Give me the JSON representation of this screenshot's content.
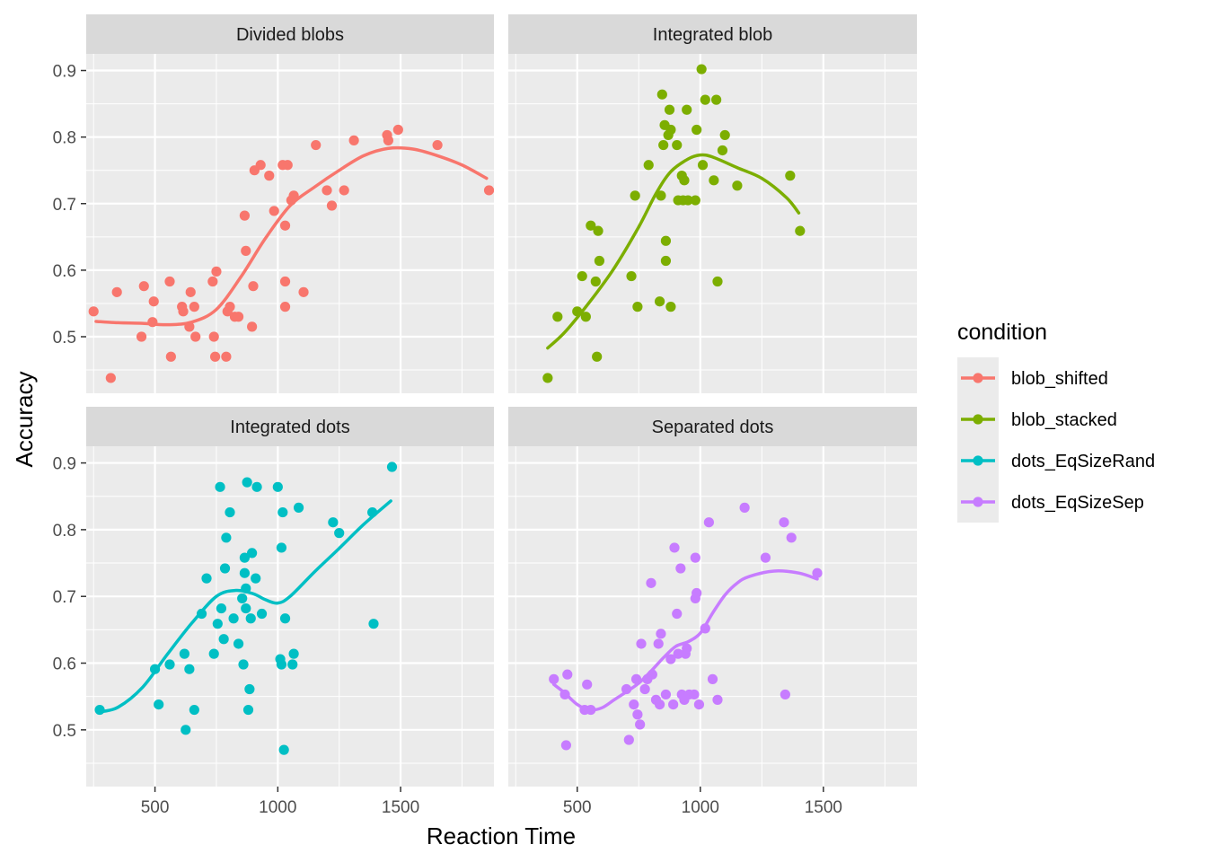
{
  "chart_data": {
    "type": "scatter",
    "xlabel": "Reaction Time",
    "ylabel": "Accuracy",
    "xlim": [
      220,
      1880
    ],
    "ylim": [
      0.415,
      0.925
    ],
    "x_ticks": [
      500,
      1000,
      1500
    ],
    "y_ticks": [
      0.5,
      0.6,
      0.7,
      0.8,
      0.9
    ],
    "grid": true,
    "legend": {
      "title": "condition",
      "placement": "right",
      "entries": [
        "blob_shifted",
        "blob_stacked",
        "dots_EqSizeRand",
        "dots_EqSizeSep"
      ]
    },
    "colors": {
      "blob_shifted": "#f8766d",
      "blob_stacked": "#7cae00",
      "dots_EqSizeRand": "#00bfc4",
      "dots_EqSizeSep": "#c77cff",
      "panel_bg": "#ebebeb",
      "strip_bg": "#d9d9d9"
    },
    "panels": [
      {
        "title": "Divided blobs",
        "condition": "blob_shifted",
        "points": [
          [
            250,
            0.538
          ],
          [
            320,
            0.438
          ],
          [
            345,
            0.567
          ],
          [
            445,
            0.5
          ],
          [
            455,
            0.576
          ],
          [
            490,
            0.522
          ],
          [
            495,
            0.553
          ],
          [
            560,
            0.583
          ],
          [
            565,
            0.47
          ],
          [
            610,
            0.545
          ],
          [
            615,
            0.538
          ],
          [
            640,
            0.515
          ],
          [
            645,
            0.567
          ],
          [
            660,
            0.545
          ],
          [
            665,
            0.5
          ],
          [
            735,
            0.583
          ],
          [
            740,
            0.5
          ],
          [
            745,
            0.47
          ],
          [
            750,
            0.598
          ],
          [
            790,
            0.47
          ],
          [
            795,
            0.538
          ],
          [
            805,
            0.545
          ],
          [
            825,
            0.53
          ],
          [
            840,
            0.53
          ],
          [
            865,
            0.682
          ],
          [
            870,
            0.629
          ],
          [
            895,
            0.515
          ],
          [
            900,
            0.576
          ],
          [
            905,
            0.75
          ],
          [
            930,
            0.758
          ],
          [
            965,
            0.742
          ],
          [
            985,
            0.689
          ],
          [
            1020,
            0.758
          ],
          [
            1030,
            0.667
          ],
          [
            1030,
            0.583
          ],
          [
            1030,
            0.545
          ],
          [
            1040,
            0.758
          ],
          [
            1055,
            0.705
          ],
          [
            1065,
            0.712
          ],
          [
            1105,
            0.567
          ],
          [
            1155,
            0.788
          ],
          [
            1200,
            0.72
          ],
          [
            1220,
            0.697
          ],
          [
            1270,
            0.72
          ],
          [
            1310,
            0.795
          ],
          [
            1445,
            0.803
          ],
          [
            1450,
            0.795
          ],
          [
            1490,
            0.811
          ],
          [
            1650,
            0.788
          ],
          [
            1860,
            0.72
          ]
        ],
        "smooth": [
          [
            260,
            0.523
          ],
          [
            350,
            0.521
          ],
          [
            450,
            0.52
          ],
          [
            550,
            0.518
          ],
          [
            650,
            0.522
          ],
          [
            750,
            0.541
          ],
          [
            850,
            0.59
          ],
          [
            950,
            0.648
          ],
          [
            1050,
            0.697
          ],
          [
            1150,
            0.725
          ],
          [
            1250,
            0.75
          ],
          [
            1350,
            0.772
          ],
          [
            1450,
            0.783
          ],
          [
            1550,
            0.782
          ],
          [
            1650,
            0.772
          ],
          [
            1750,
            0.758
          ],
          [
            1850,
            0.738
          ]
        ]
      },
      {
        "title": "Integrated blob",
        "condition": "blob_stacked",
        "points": [
          [
            380,
            0.438
          ],
          [
            420,
            0.53
          ],
          [
            500,
            0.538
          ],
          [
            520,
            0.591
          ],
          [
            535,
            0.53
          ],
          [
            555,
            0.667
          ],
          [
            575,
            0.583
          ],
          [
            580,
            0.47
          ],
          [
            585,
            0.659
          ],
          [
            590,
            0.614
          ],
          [
            720,
            0.591
          ],
          [
            735,
            0.712
          ],
          [
            745,
            0.545
          ],
          [
            790,
            0.758
          ],
          [
            835,
            0.553
          ],
          [
            840,
            0.712
          ],
          [
            845,
            0.864
          ],
          [
            850,
            0.788
          ],
          [
            855,
            0.818
          ],
          [
            860,
            0.644
          ],
          [
            860,
            0.614
          ],
          [
            870,
            0.803
          ],
          [
            875,
            0.841
          ],
          [
            880,
            0.545
          ],
          [
            880,
            0.811
          ],
          [
            905,
            0.788
          ],
          [
            910,
            0.705
          ],
          [
            925,
            0.742
          ],
          [
            930,
            0.705
          ],
          [
            935,
            0.735
          ],
          [
            945,
            0.841
          ],
          [
            950,
            0.705
          ],
          [
            980,
            0.705
          ],
          [
            985,
            0.811
          ],
          [
            1005,
            0.902
          ],
          [
            1010,
            0.758
          ],
          [
            1020,
            0.856
          ],
          [
            1055,
            0.735
          ],
          [
            1065,
            0.856
          ],
          [
            1070,
            0.583
          ],
          [
            1090,
            0.78
          ],
          [
            1100,
            0.803
          ],
          [
            1150,
            0.727
          ],
          [
            1365,
            0.742
          ],
          [
            1405,
            0.659
          ]
        ],
        "smooth": [
          [
            380,
            0.483
          ],
          [
            450,
            0.507
          ],
          [
            550,
            0.552
          ],
          [
            650,
            0.603
          ],
          [
            750,
            0.665
          ],
          [
            820,
            0.715
          ],
          [
            880,
            0.748
          ],
          [
            950,
            0.767
          ],
          [
            1000,
            0.773
          ],
          [
            1050,
            0.77
          ],
          [
            1150,
            0.754
          ],
          [
            1250,
            0.738
          ],
          [
            1350,
            0.709
          ],
          [
            1400,
            0.686
          ]
        ]
      },
      {
        "title": "Integrated dots",
        "condition": "dots_EqSizeRand",
        "points": [
          [
            275,
            0.53
          ],
          [
            500,
            0.591
          ],
          [
            515,
            0.538
          ],
          [
            560,
            0.598
          ],
          [
            620,
            0.614
          ],
          [
            625,
            0.5
          ],
          [
            640,
            0.591
          ],
          [
            660,
            0.53
          ],
          [
            690,
            0.674
          ],
          [
            710,
            0.727
          ],
          [
            740,
            0.614
          ],
          [
            755,
            0.659
          ],
          [
            765,
            0.864
          ],
          [
            770,
            0.682
          ],
          [
            780,
            0.636
          ],
          [
            785,
            0.742
          ],
          [
            790,
            0.788
          ],
          [
            805,
            0.826
          ],
          [
            820,
            0.667
          ],
          [
            840,
            0.629
          ],
          [
            855,
            0.697
          ],
          [
            860,
            0.598
          ],
          [
            865,
            0.735
          ],
          [
            865,
            0.758
          ],
          [
            870,
            0.712
          ],
          [
            870,
            0.682
          ],
          [
            875,
            0.871
          ],
          [
            880,
            0.53
          ],
          [
            885,
            0.561
          ],
          [
            890,
            0.667
          ],
          [
            895,
            0.765
          ],
          [
            910,
            0.727
          ],
          [
            915,
            0.864
          ],
          [
            935,
            0.674
          ],
          [
            1000,
            0.864
          ],
          [
            1010,
            0.606
          ],
          [
            1015,
            0.598
          ],
          [
            1015,
            0.773
          ],
          [
            1020,
            0.826
          ],
          [
            1025,
            0.47
          ],
          [
            1030,
            0.667
          ],
          [
            1060,
            0.598
          ],
          [
            1065,
            0.614
          ],
          [
            1085,
            0.833
          ],
          [
            1225,
            0.811
          ],
          [
            1250,
            0.795
          ],
          [
            1385,
            0.826
          ],
          [
            1390,
            0.659
          ],
          [
            1465,
            0.894
          ]
        ],
        "smooth": [
          [
            275,
            0.527
          ],
          [
            350,
            0.534
          ],
          [
            450,
            0.564
          ],
          [
            550,
            0.613
          ],
          [
            650,
            0.66
          ],
          [
            750,
            0.7
          ],
          [
            830,
            0.709
          ],
          [
            900,
            0.704
          ],
          [
            950,
            0.695
          ],
          [
            1000,
            0.69
          ],
          [
            1050,
            0.7
          ],
          [
            1150,
            0.737
          ],
          [
            1250,
            0.772
          ],
          [
            1350,
            0.808
          ],
          [
            1460,
            0.843
          ]
        ]
      },
      {
        "title": "Separated dots",
        "condition": "dots_EqSizeSep",
        "points": [
          [
            405,
            0.576
          ],
          [
            450,
            0.553
          ],
          [
            455,
            0.477
          ],
          [
            460,
            0.583
          ],
          [
            530,
            0.53
          ],
          [
            540,
            0.568
          ],
          [
            555,
            0.53
          ],
          [
            700,
            0.561
          ],
          [
            710,
            0.485
          ],
          [
            730,
            0.538
          ],
          [
            740,
            0.576
          ],
          [
            745,
            0.523
          ],
          [
            755,
            0.508
          ],
          [
            760,
            0.629
          ],
          [
            775,
            0.561
          ],
          [
            785,
            0.576
          ],
          [
            800,
            0.72
          ],
          [
            805,
            0.583
          ],
          [
            820,
            0.545
          ],
          [
            830,
            0.629
          ],
          [
            835,
            0.538
          ],
          [
            840,
            0.644
          ],
          [
            860,
            0.553
          ],
          [
            880,
            0.606
          ],
          [
            890,
            0.538
          ],
          [
            895,
            0.773
          ],
          [
            905,
            0.674
          ],
          [
            910,
            0.614
          ],
          [
            920,
            0.742
          ],
          [
            925,
            0.553
          ],
          [
            935,
            0.545
          ],
          [
            940,
            0.614
          ],
          [
            945,
            0.622
          ],
          [
            955,
            0.553
          ],
          [
            975,
            0.553
          ],
          [
            980,
            0.758
          ],
          [
            980,
            0.697
          ],
          [
            985,
            0.705
          ],
          [
            995,
            0.538
          ],
          [
            1020,
            0.652
          ],
          [
            1035,
            0.811
          ],
          [
            1050,
            0.576
          ],
          [
            1070,
            0.545
          ],
          [
            1180,
            0.833
          ],
          [
            1265,
            0.758
          ],
          [
            1340,
            0.811
          ],
          [
            1345,
            0.553
          ],
          [
            1370,
            0.788
          ],
          [
            1475,
            0.735
          ]
        ],
        "smooth": [
          [
            405,
            0.568
          ],
          [
            450,
            0.555
          ],
          [
            500,
            0.538
          ],
          [
            550,
            0.53
          ],
          [
            600,
            0.533
          ],
          [
            650,
            0.545
          ],
          [
            700,
            0.557
          ],
          [
            750,
            0.57
          ],
          [
            800,
            0.588
          ],
          [
            850,
            0.608
          ],
          [
            900,
            0.625
          ],
          [
            950,
            0.632
          ],
          [
            1000,
            0.645
          ],
          [
            1050,
            0.675
          ],
          [
            1100,
            0.702
          ],
          [
            1150,
            0.72
          ],
          [
            1200,
            0.73
          ],
          [
            1300,
            0.738
          ],
          [
            1400,
            0.735
          ],
          [
            1475,
            0.726
          ]
        ]
      }
    ]
  }
}
